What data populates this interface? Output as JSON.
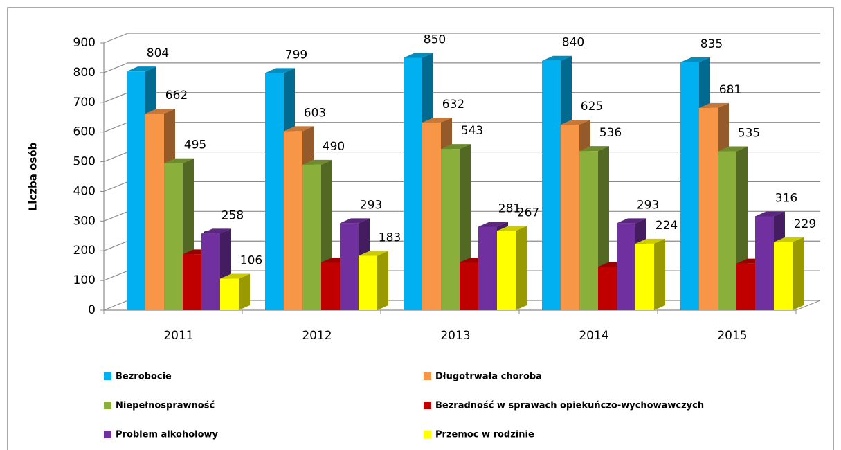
{
  "chart_data": {
    "type": "bar3d",
    "ylabel": "Liczba osób",
    "categories": [
      "2011",
      "2012",
      "2013",
      "2014",
      "2015"
    ],
    "series": [
      {
        "name": "Bezrobocie",
        "color": "#00b0f0",
        "values": [
          804,
          799,
          850,
          840,
          835
        ]
      },
      {
        "name": "Długotrwała choroba",
        "color": "#f79646",
        "values": [
          662,
          603,
          632,
          625,
          681
        ]
      },
      {
        "name": "Niepełnosprawność",
        "color": "#8aaf3a",
        "values": [
          495,
          490,
          543,
          536,
          535
        ]
      },
      {
        "name": "Bezradność w sprawach opiekuńczo-wychowawczych",
        "color": "#c00000",
        "values": [
          188,
          161,
          161,
          146,
          157
        ]
      },
      {
        "name": "Problem alkoholowy",
        "color": "#7030a0",
        "values": [
          258,
          293,
          281,
          293,
          316
        ]
      },
      {
        "name": "Przemoc w rodzinie",
        "color": "#ffff00",
        "values": [
          106,
          183,
          267,
          224,
          229
        ]
      }
    ],
    "ylim": [
      0,
      900
    ],
    "yticks": [
      0,
      100,
      200,
      300,
      400,
      500,
      600,
      700,
      800,
      900
    ],
    "grid": true
  }
}
